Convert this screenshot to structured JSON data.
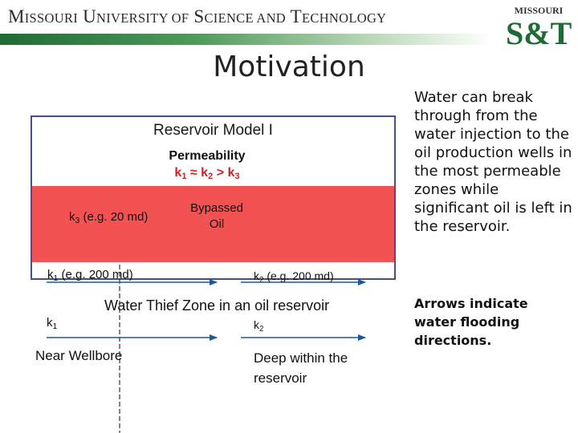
{
  "header": {
    "title_caps": [
      "M",
      "U",
      "S",
      "T"
    ],
    "title_words": [
      "ISSOURI",
      "NIVERSITY OF",
      "CIENCE AND",
      "ECHNOLOGY"
    ],
    "logo_top": "MISSOURI",
    "logo_main": "S&T",
    "bar_color": "#1f6b35"
  },
  "slide": {
    "title": "Motivation"
  },
  "diagram": {
    "heading": "Reservoir Model I",
    "permeability_label": "Permeability",
    "relation": {
      "k1": "k",
      "s1": "1",
      "approx": " ≈ k",
      "s2": "2",
      "gt": " > k",
      "s3": "3"
    },
    "k3_label": {
      "k": "k",
      "sub": "3",
      "rest": " (e.g. 20 md)"
    },
    "bypassed": [
      "Bypassed",
      "Oil"
    ],
    "k1_top": {
      "k": "k",
      "sub": "1",
      "rest": " (e.g. 200 md)"
    },
    "k2_top": {
      "k": "k",
      "sub": "2",
      "rest": " (e.g. 200 md)"
    },
    "water_thief": "Water Thief Zone in an oil reservoir",
    "k1_bottom": {
      "k": "k",
      "sub": "1"
    },
    "k2_bottom": {
      "k": "k",
      "sub": "2"
    },
    "near_wellbore": "Near Wellbore",
    "deep_within": [
      "Deep within the",
      "reservoir"
    ],
    "oil_color": "#f25252"
  },
  "sidebar": {
    "body": "Water can break through from the water injection to the oil production wells in the most permeable zones while significant oil is left in the reservoir.",
    "note": "Arrows indicate water flooding directions."
  }
}
